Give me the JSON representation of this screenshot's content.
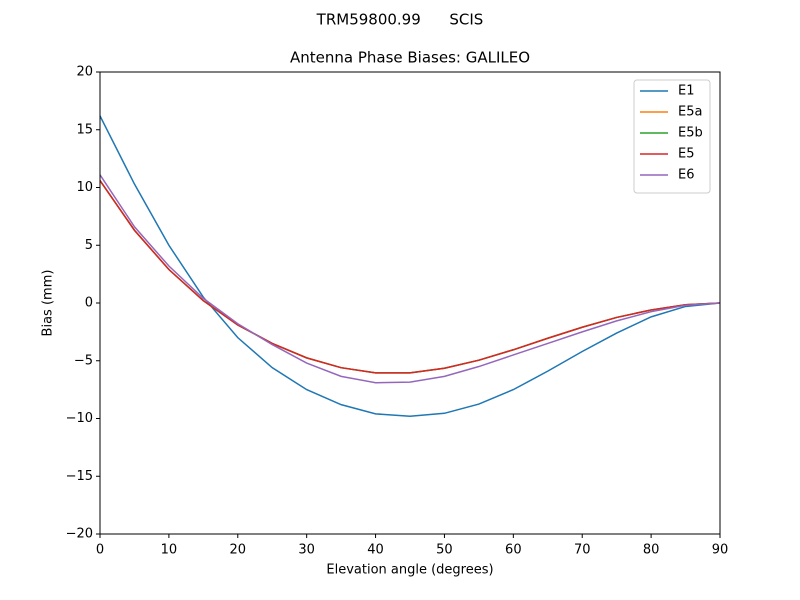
{
  "chart_data": {
    "type": "line",
    "suptitle": "TRM59800.99      SCIS",
    "title": "Antenna Phase Biases: GALILEO",
    "xlabel": "Elevation angle (degrees)",
    "ylabel": "Bias (mm)",
    "x": [
      0,
      5,
      10,
      15,
      20,
      25,
      30,
      35,
      40,
      45,
      50,
      55,
      60,
      65,
      70,
      75,
      80,
      85,
      90
    ],
    "series": [
      {
        "name": "E1",
        "color": "#1f77b4",
        "values": [
          16.2,
          10.3,
          5.0,
          0.5,
          -3.0,
          -5.6,
          -7.5,
          -8.8,
          -9.6,
          -9.8,
          -9.55,
          -8.75,
          -7.5,
          -5.9,
          -4.2,
          -2.6,
          -1.2,
          -0.3,
          0.0
        ]
      },
      {
        "name": "E5a",
        "color": "#ff7f0e",
        "values": [
          10.6,
          6.3,
          2.9,
          0.2,
          -1.9,
          -3.5,
          -4.75,
          -5.6,
          -6.05,
          -6.05,
          -5.65,
          -4.95,
          -4.05,
          -3.05,
          -2.1,
          -1.25,
          -0.6,
          -0.15,
          0.0
        ]
      },
      {
        "name": "E5b",
        "color": "#2ca02c",
        "values": [
          10.6,
          6.3,
          2.9,
          0.2,
          -1.9,
          -3.5,
          -4.75,
          -5.6,
          -6.05,
          -6.05,
          -5.65,
          -4.95,
          -4.05,
          -3.05,
          -2.1,
          -1.25,
          -0.6,
          -0.15,
          0.0
        ]
      },
      {
        "name": "E5",
        "color": "#d62728",
        "values": [
          10.6,
          6.3,
          2.9,
          0.2,
          -1.9,
          -3.5,
          -4.75,
          -5.6,
          -6.05,
          -6.05,
          -5.65,
          -4.95,
          -4.05,
          -3.05,
          -2.1,
          -1.25,
          -0.6,
          -0.15,
          0.0
        ]
      },
      {
        "name": "E6",
        "color": "#9467bd",
        "values": [
          11.1,
          6.6,
          3.2,
          0.4,
          -1.8,
          -3.6,
          -5.2,
          -6.35,
          -6.9,
          -6.85,
          -6.35,
          -5.5,
          -4.5,
          -3.5,
          -2.5,
          -1.55,
          -0.75,
          -0.2,
          0.0
        ]
      }
    ],
    "xlim": [
      0,
      90
    ],
    "xticks": [
      0,
      10,
      20,
      30,
      40,
      50,
      60,
      70,
      80,
      90
    ],
    "ylim": [
      -20,
      20
    ],
    "yticks": [
      {
        "value": -20,
        "label": "−20"
      },
      {
        "value": -15,
        "label": "−15"
      },
      {
        "value": -10,
        "label": "−10"
      },
      {
        "value": -5,
        "label": "−5"
      },
      0,
      5,
      10,
      15,
      20
    ],
    "legend": "upper right",
    "grid": false
  }
}
